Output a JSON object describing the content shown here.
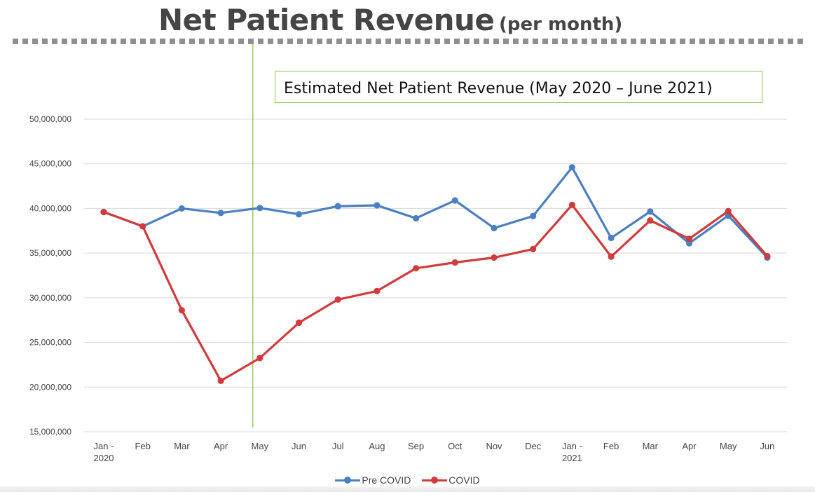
{
  "slide": {
    "title": "Net Patient Revenue",
    "title_suffix": "(per month)",
    "annotation_box": "Estimated Net Patient Revenue (May 2020 – June 2021)"
  },
  "colors": {
    "pre_covid": "#4a7fc1",
    "covid": "#d03b3b",
    "marker_line": "#8ac44a",
    "grid": "#d9d9d9",
    "dotted_rule": "#8f8f8f"
  },
  "chart_data": {
    "type": "line",
    "title": "",
    "xlabel": "",
    "ylabel": "",
    "categories": [
      [
        "Jan -",
        "2020"
      ],
      [
        "Feb"
      ],
      [
        "Mar"
      ],
      [
        "Apr"
      ],
      [
        "May"
      ],
      [
        "Jun"
      ],
      [
        "Jul"
      ],
      [
        "Aug"
      ],
      [
        "Sep"
      ],
      [
        "Oct"
      ],
      [
        "Nov"
      ],
      [
        "Dec"
      ],
      [
        "Jan -",
        "2021"
      ],
      [
        "Feb"
      ],
      [
        "Mar"
      ],
      [
        "Apr"
      ],
      [
        "May"
      ],
      [
        "Jun"
      ]
    ],
    "ylim": [
      15000000,
      50000000
    ],
    "yticks": [
      15000000,
      20000000,
      25000000,
      30000000,
      35000000,
      40000000,
      45000000,
      50000000
    ],
    "ytick_labels": [
      "15,000,000",
      "20,000,000",
      "25,000,000",
      "30,000,000",
      "35,000,000",
      "40,000,000",
      "45,000,000",
      "50,000,000"
    ],
    "grid": true,
    "legend_position": "bottom",
    "vertical_marker_category_index": 4,
    "series": [
      {
        "name": "Pre COVID",
        "color_key": "pre_covid",
        "values": [
          39600000,
          38000000,
          40000000,
          39500000,
          40050000,
          39350000,
          40250000,
          40350000,
          38900000,
          40900000,
          37800000,
          39150000,
          44600000,
          36700000,
          39650000,
          36100000,
          39200000,
          34500000
        ]
      },
      {
        "name": "COVID",
        "color_key": "covid",
        "values": [
          39600000,
          38000000,
          28600000,
          20700000,
          23250000,
          27200000,
          29800000,
          30750000,
          33300000,
          33950000,
          34500000,
          35450000,
          40400000,
          34600000,
          38650000,
          36600000,
          39700000,
          34650000
        ]
      }
    ]
  }
}
